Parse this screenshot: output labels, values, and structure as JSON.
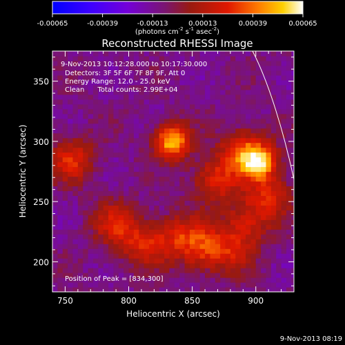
{
  "chart_data": {
    "type": "heatmap",
    "title": "Reconstructed RHESSI Image",
    "xlabel": "Heliocentric X (arcsec)",
    "ylabel": "Heliocentric Y (arcsec)",
    "xlim": [
      740,
      930
    ],
    "ylim": [
      175,
      375
    ],
    "x_ticks": [
      750,
      800,
      850,
      900
    ],
    "y_ticks": [
      200,
      250,
      300,
      350
    ],
    "colorbar": {
      "min": -0.00065,
      "max": 0.00065,
      "ticks": [
        "-0.00065",
        "-0.00039",
        "-0.00013",
        "0.00013",
        "0.00039",
        "0.00065"
      ],
      "ticks_values": [
        -0.00065,
        -0.00039,
        -0.00013,
        0.00013,
        0.00039,
        0.00065
      ],
      "label_parts": [
        "(photons cm",
        "-2",
        " s",
        "-1",
        " asec",
        "-2",
        ")"
      ]
    },
    "info_lines": [
      "9-Nov-2013 10:12:28.000 to 10:17:30.000",
      "Detectors: 3F 5F 6F 7F 8F 9F, Att 0",
      "Energy Range: 12.0 - 25.0 keV",
      "Clean      Total counts: 2.99E+04"
    ],
    "peak_label": "Position of Peak = [834,300]",
    "peak": [
      834,
      300
    ],
    "sources": [
      {
        "x": 834,
        "y": 300,
        "intensity": 0.00065
      },
      {
        "x": 903,
        "y": 283,
        "intensity": 0.00055
      },
      {
        "x": 890,
        "y": 292,
        "intensity": 0.0004
      },
      {
        "x": 868,
        "y": 268,
        "intensity": 0.00035
      },
      {
        "x": 910,
        "y": 255,
        "intensity": 0.00032
      },
      {
        "x": 892,
        "y": 232,
        "intensity": 0.0003
      },
      {
        "x": 755,
        "y": 285,
        "intensity": 0.00034
      },
      {
        "x": 790,
        "y": 232,
        "intensity": 0.00032
      },
      {
        "x": 812,
        "y": 214,
        "intensity": 0.0003
      },
      {
        "x": 858,
        "y": 212,
        "intensity": 0.00036
      },
      {
        "x": 838,
        "y": 222,
        "intensity": 0.00026
      },
      {
        "x": 880,
        "y": 208,
        "intensity": 0.00022
      }
    ]
  },
  "footer_timestamp": "9-Nov-2013 08:19"
}
